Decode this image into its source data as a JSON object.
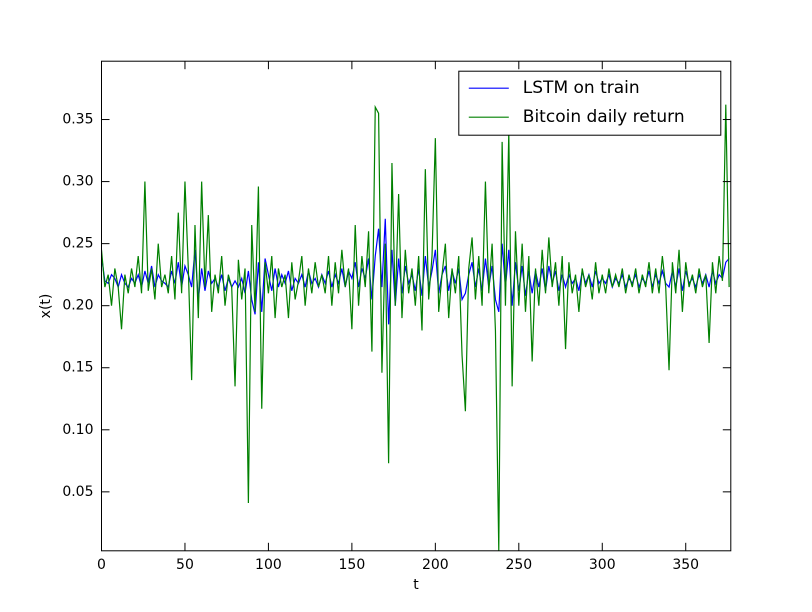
{
  "chart_data": {
    "type": "line",
    "xlabel": "t",
    "ylabel": "x(t)",
    "xlim": [
      0,
      377
    ],
    "xticks": [
      0,
      50,
      100,
      150,
      200,
      250,
      300,
      350
    ],
    "ylim": [
      0.0025,
      0.397
    ],
    "yticks": [
      0.05,
      {
        "value": 0.1,
        "label": "0.10"
      },
      0.15,
      {
        "value": 0.2,
        "label": "0.20"
      },
      0.25,
      {
        "value": 0.3,
        "label": "0.30"
      },
      0.35
    ],
    "legend": "upper right",
    "grid": false,
    "x": [
      0,
      2,
      4,
      6,
      8,
      10,
      12,
      14,
      16,
      18,
      20,
      22,
      24,
      26,
      28,
      30,
      32,
      34,
      36,
      38,
      40,
      42,
      44,
      46,
      48,
      50,
      52,
      54,
      56,
      58,
      60,
      62,
      64,
      66,
      68,
      70,
      72,
      74,
      76,
      78,
      80,
      82,
      84,
      86,
      88,
      90,
      92,
      94,
      96,
      98,
      100,
      102,
      104,
      106,
      108,
      110,
      112,
      114,
      116,
      118,
      120,
      122,
      124,
      126,
      128,
      130,
      132,
      134,
      136,
      138,
      140,
      142,
      144,
      146,
      148,
      150,
      152,
      154,
      156,
      158,
      160,
      162,
      164,
      166,
      168,
      170,
      172,
      174,
      176,
      178,
      180,
      182,
      184,
      186,
      188,
      190,
      192,
      194,
      196,
      198,
      200,
      202,
      204,
      206,
      208,
      210,
      212,
      214,
      216,
      218,
      220,
      222,
      224,
      226,
      228,
      230,
      232,
      234,
      236,
      238,
      240,
      242,
      244,
      246,
      248,
      250,
      252,
      254,
      256,
      258,
      260,
      262,
      264,
      266,
      268,
      270,
      272,
      274,
      276,
      278,
      280,
      282,
      284,
      286,
      288,
      290,
      292,
      294,
      296,
      298,
      300,
      302,
      304,
      306,
      308,
      310,
      312,
      314,
      316,
      318,
      320,
      322,
      324,
      326,
      328,
      330,
      332,
      334,
      336,
      338,
      340,
      342,
      344,
      346,
      348,
      350,
      352,
      354,
      356,
      358,
      360,
      362,
      364,
      366,
      368,
      370,
      372,
      374,
      376
    ],
    "series": [
      {
        "name": "LSTM on train",
        "color": "#0000ff",
        "values": [
          0.24,
          0.22,
          0.218,
          0.225,
          0.222,
          0.215,
          0.225,
          0.218,
          0.215,
          0.222,
          0.218,
          0.225,
          0.215,
          0.228,
          0.218,
          0.232,
          0.215,
          0.225,
          0.22,
          0.218,
          0.215,
          0.228,
          0.218,
          0.235,
          0.215,
          0.232,
          0.225,
          0.215,
          0.245,
          0.205,
          0.23,
          0.212,
          0.228,
          0.218,
          0.222,
          0.215,
          0.225,
          0.212,
          0.222,
          0.215,
          0.22,
          0.215,
          0.222,
          0.21,
          0.228,
          0.205,
          0.193,
          0.235,
          0.195,
          0.238,
          0.225,
          0.212,
          0.23,
          0.215,
          0.225,
          0.218,
          0.228,
          0.212,
          0.222,
          0.218,
          0.225,
          0.215,
          0.228,
          0.218,
          0.222,
          0.215,
          0.225,
          0.218,
          0.228,
          0.215,
          0.225,
          0.218,
          0.23,
          0.215,
          0.228,
          0.222,
          0.235,
          0.215,
          0.23,
          0.222,
          0.238,
          0.205,
          0.24,
          0.262,
          0.215,
          0.27,
          0.185,
          0.245,
          0.2,
          0.238,
          0.21,
          0.232,
          0.218,
          0.225,
          0.212,
          0.23,
          0.208,
          0.24,
          0.215,
          0.228,
          0.245,
          0.21,
          0.225,
          0.232,
          0.212,
          0.228,
          0.218,
          0.23,
          0.205,
          0.21,
          0.225,
          0.235,
          0.215,
          0.23,
          0.212,
          0.238,
          0.215,
          0.232,
          0.205,
          0.195,
          0.25,
          0.215,
          0.245,
          0.2,
          0.235,
          0.212,
          0.232,
          0.208,
          0.228,
          0.21,
          0.228,
          0.215,
          0.23,
          0.212,
          0.232,
          0.218,
          0.228,
          0.212,
          0.225,
          0.215,
          0.225,
          0.218,
          0.222,
          0.212,
          0.228,
          0.218,
          0.225,
          0.215,
          0.228,
          0.218,
          0.222,
          0.218,
          0.225,
          0.215,
          0.222,
          0.218,
          0.225,
          0.215,
          0.222,
          0.218,
          0.225,
          0.215,
          0.222,
          0.218,
          0.228,
          0.215,
          0.225,
          0.218,
          0.228,
          0.218,
          0.215,
          0.228,
          0.215,
          0.23,
          0.212,
          0.228,
          0.218,
          0.222,
          0.215,
          0.225,
          0.218,
          0.225,
          0.215,
          0.228,
          0.218,
          0.225,
          0.222,
          0.235,
          0.238
        ]
      },
      {
        "name": "Bitcoin daily return",
        "color": "#008000",
        "values": [
          0.245,
          0.215,
          0.225,
          0.2,
          0.23,
          0.215,
          0.181,
          0.225,
          0.21,
          0.23,
          0.215,
          0.24,
          0.21,
          0.3,
          0.212,
          0.23,
          0.205,
          0.25,
          0.215,
          0.225,
          0.21,
          0.24,
          0.205,
          0.275,
          0.21,
          0.3,
          0.23,
          0.14,
          0.265,
          0.19,
          0.3,
          0.215,
          0.273,
          0.195,
          0.225,
          0.21,
          0.24,
          0.2,
          0.225,
          0.215,
          0.135,
          0.237,
          0.205,
          0.23,
          0.041,
          0.265,
          0.195,
          0.296,
          0.117,
          0.235,
          0.21,
          0.24,
          0.19,
          0.23,
          0.215,
          0.225,
          0.19,
          0.235,
          0.205,
          0.22,
          0.24,
          0.2,
          0.23,
          0.21,
          0.235,
          0.215,
          0.225,
          0.21,
          0.24,
          0.2,
          0.235,
          0.21,
          0.245,
          0.215,
          0.23,
          0.181,
          0.265,
          0.2,
          0.24,
          0.215,
          0.26,
          0.163,
          0.36,
          0.355,
          0.146,
          0.25,
          0.073,
          0.315,
          0.2,
          0.29,
          0.19,
          0.245,
          0.21,
          0.23,
          0.2,
          0.24,
          0.18,
          0.31,
          0.205,
          0.24,
          0.335,
          0.195,
          0.225,
          0.25,
          0.19,
          0.23,
          0.21,
          0.24,
          0.16,
          0.115,
          0.23,
          0.255,
          0.205,
          0.24,
          0.2,
          0.3,
          0.21,
          0.25,
          0.18,
          0.0025,
          0.332,
          0.2,
          0.34,
          0.135,
          0.26,
          0.2,
          0.25,
          0.195,
          0.24,
          0.155,
          0.23,
          0.2,
          0.245,
          0.21,
          0.255,
          0.215,
          0.235,
          0.2,
          0.24,
          0.165,
          0.235,
          0.21,
          0.225,
          0.195,
          0.23,
          0.215,
          0.225,
          0.205,
          0.235,
          0.21,
          0.225,
          0.21,
          0.23,
          0.215,
          0.225,
          0.215,
          0.23,
          0.21,
          0.225,
          0.215,
          0.23,
          0.21,
          0.225,
          0.215,
          0.235,
          0.21,
          0.23,
          0.21,
          0.24,
          0.215,
          0.148,
          0.235,
          0.21,
          0.245,
          0.195,
          0.235,
          0.215,
          0.225,
          0.21,
          0.23,
          0.215,
          0.225,
          0.17,
          0.235,
          0.21,
          0.24,
          0.22,
          0.362,
          0.215
        ]
      }
    ]
  }
}
